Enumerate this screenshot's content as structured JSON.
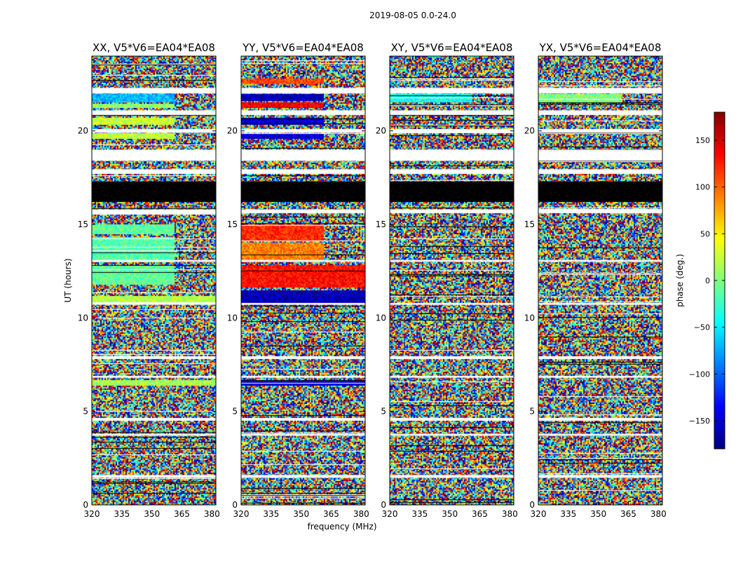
{
  "suptitle": "2019-08-05 0.0-24.0",
  "xlabel": "frequency (MHz)",
  "ylabel": "UT (hours)",
  "colorbar": {
    "label": "phase (deg.)",
    "range": [
      -180,
      180
    ],
    "ticks": [
      -150,
      -100,
      -50,
      0,
      50,
      100,
      150
    ],
    "colormap": "jet",
    "colors": [
      "#00007f",
      "#0000ff",
      "#007fff",
      "#00ffff",
      "#7fff7f",
      "#ffff00",
      "#ff7f00",
      "#ff0000",
      "#7f0000"
    ]
  },
  "flag_colors": {
    "blank": "#ffffff",
    "masked": "#000000"
  },
  "chart_data": [
    {
      "type": "heatmap",
      "title": "XX, V5*V6=EA04*EA08",
      "x_ticks": [
        320,
        335,
        350,
        365,
        380
      ],
      "y_ticks": [
        0,
        5,
        10,
        15,
        20
      ],
      "xlim": [
        320,
        382
      ],
      "ylim": [
        0,
        24
      ],
      "coherent_bands": [
        {
          "ut": [
            21.5,
            22.0
          ],
          "phase": -70,
          "freq_end": 361
        },
        {
          "ut": [
            21.2,
            21.45
          ],
          "phase": 10,
          "freq_end": 361
        },
        {
          "ut": [
            20.3,
            20.7
          ],
          "phase": 25,
          "freq_end": 361
        },
        {
          "ut": [
            19.6,
            19.9
          ],
          "phase": 25,
          "freq_end": 361
        },
        {
          "ut": [
            14.5,
            15.0
          ],
          "phase": -10,
          "freq_end": 361
        },
        {
          "ut": [
            13.0,
            14.3
          ],
          "phase": -15,
          "freq_end": 361
        },
        {
          "ut": [
            11.8,
            12.8
          ],
          "phase": -10,
          "freq_end": 361
        },
        {
          "ut": [
            10.8,
            11.2
          ],
          "phase": 20,
          "freq_end": 382
        },
        {
          "ut": [
            6.4,
            6.7
          ],
          "phase": 15,
          "freq_end": 382
        }
      ],
      "blank_bands": [
        [
          22.0,
          22.3
        ],
        [
          20.85,
          21.1
        ],
        [
          19.9,
          20.1
        ],
        [
          18.4,
          19.0
        ],
        [
          17.7,
          17.95
        ],
        [
          15.6,
          15.8
        ],
        [
          13.0,
          13.1
        ],
        [
          10.7,
          10.8
        ],
        [
          7.8,
          7.95
        ],
        [
          6.8,
          6.9
        ],
        [
          4.5,
          4.65
        ],
        [
          3.7,
          3.8
        ],
        [
          1.45,
          1.6
        ]
      ],
      "masked_bands": [
        [
          16.2,
          17.3
        ]
      ]
    },
    {
      "type": "heatmap",
      "title": "YY, V5*V6=EA04*EA08",
      "x_ticks": [
        320,
        335,
        350,
        365,
        380
      ],
      "y_ticks": [
        0,
        5,
        10,
        15,
        20
      ],
      "xlim": [
        320,
        382
      ],
      "ylim": [
        0,
        24
      ],
      "coherent_bands": [
        {
          "ut": [
            22.5,
            22.8
          ],
          "phase": 110,
          "freq_end": 361
        },
        {
          "ut": [
            21.6,
            22.0
          ],
          "phase": -160,
          "freq_end": 361
        },
        {
          "ut": [
            21.2,
            21.5
          ],
          "phase": 140,
          "freq_end": 361
        },
        {
          "ut": [
            20.3,
            20.7
          ],
          "phase": -150,
          "freq_end": 361
        },
        {
          "ut": [
            19.6,
            19.9
          ],
          "phase": -150,
          "freq_end": 361
        },
        {
          "ut": [
            14.1,
            15.0
          ],
          "phase": 120,
          "freq_end": 361
        },
        {
          "ut": [
            13.0,
            14.0
          ],
          "phase": 90,
          "freq_end": 361
        },
        {
          "ut": [
            11.6,
            12.8
          ],
          "phase": 130,
          "freq_end": 382
        },
        {
          "ut": [
            10.8,
            11.5
          ],
          "phase": -160,
          "freq_end": 382
        },
        {
          "ut": [
            6.4,
            6.7
          ],
          "phase": -150,
          "freq_end": 382
        }
      ],
      "blank_bands": [
        [
          22.0,
          22.3
        ],
        [
          20.85,
          21.1
        ],
        [
          19.9,
          20.1
        ],
        [
          18.4,
          19.0
        ],
        [
          17.7,
          17.95
        ],
        [
          15.6,
          15.8
        ],
        [
          13.0,
          13.1
        ],
        [
          10.7,
          10.8
        ],
        [
          7.8,
          7.95
        ],
        [
          6.8,
          6.9
        ],
        [
          4.5,
          4.65
        ],
        [
          3.7,
          3.8
        ],
        [
          1.45,
          1.6
        ]
      ],
      "masked_bands": [
        [
          16.2,
          17.3
        ]
      ]
    },
    {
      "type": "heatmap",
      "title": "XY, V5*V6=EA04*EA08",
      "x_ticks": [
        320,
        335,
        350,
        365,
        380
      ],
      "y_ticks": [
        0,
        5,
        10,
        15,
        20
      ],
      "xlim": [
        320,
        382
      ],
      "ylim": [
        0,
        24
      ],
      "coherent_bands": [
        {
          "ut": [
            21.5,
            22.0
          ],
          "phase": -40,
          "freq_end": 361
        }
      ],
      "blank_bands": [
        [
          22.0,
          22.3
        ],
        [
          20.85,
          21.1
        ],
        [
          19.9,
          20.1
        ],
        [
          18.4,
          19.0
        ],
        [
          17.7,
          17.95
        ],
        [
          15.6,
          15.8
        ],
        [
          13.0,
          13.1
        ],
        [
          10.7,
          10.8
        ],
        [
          7.8,
          7.95
        ],
        [
          6.8,
          6.9
        ],
        [
          4.5,
          4.65
        ],
        [
          3.7,
          3.8
        ],
        [
          1.45,
          1.6
        ]
      ],
      "masked_bands": [
        [
          16.2,
          17.3
        ]
      ]
    },
    {
      "type": "heatmap",
      "title": "YX, V5*V6=EA04*EA08",
      "x_ticks": [
        320,
        335,
        350,
        365,
        380
      ],
      "y_ticks": [
        0,
        5,
        10,
        15,
        20
      ],
      "xlim": [
        320,
        382
      ],
      "ylim": [
        0,
        24
      ],
      "coherent_bands": [
        {
          "ut": [
            21.5,
            22.0
          ],
          "phase": 0,
          "freq_end": 361
        }
      ],
      "blank_bands": [
        [
          22.0,
          22.3
        ],
        [
          20.85,
          21.1
        ],
        [
          19.9,
          20.1
        ],
        [
          18.4,
          19.0
        ],
        [
          17.7,
          17.95
        ],
        [
          15.6,
          15.8
        ],
        [
          13.0,
          13.1
        ],
        [
          10.7,
          10.8
        ],
        [
          7.8,
          7.95
        ],
        [
          6.8,
          6.9
        ],
        [
          4.5,
          4.65
        ],
        [
          3.7,
          3.8
        ],
        [
          1.45,
          1.6
        ]
      ],
      "masked_bands": [
        [
          16.2,
          17.3
        ]
      ]
    }
  ]
}
